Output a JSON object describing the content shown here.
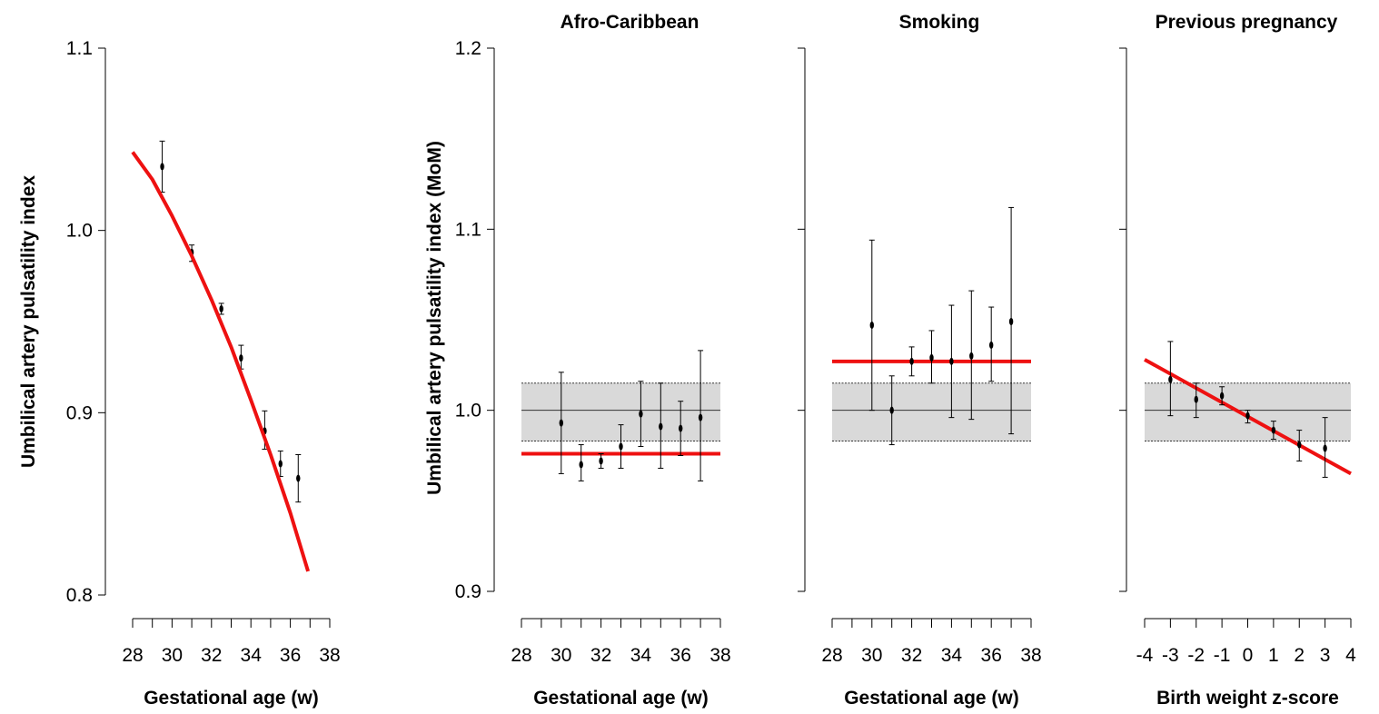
{
  "figure": {
    "ylabel_left": "Umbilical artery pulsatility index",
    "ylabel_mom": "Umbilical artery pulsatility index (MoM)"
  },
  "chart_data": [
    {
      "type": "line",
      "title": "",
      "xlabel": "Gestational age (w)",
      "ylabel": "Umbilical artery pulsatility index",
      "xlim": [
        28,
        38
      ],
      "xticks": [
        28,
        29,
        30,
        31,
        32,
        33,
        34,
        35,
        36,
        37,
        38
      ],
      "xtick_labels": [
        "28",
        "30",
        "32",
        "34",
        "36",
        "38"
      ],
      "ylim": [
        0.8,
        1.1
      ],
      "yticks": [
        "0.8",
        "0.9",
        "1.0",
        "1.1"
      ],
      "grid": false,
      "series": [
        {
          "kind": "points_with_error_bars",
          "points": [
            {
              "x": 29.5,
              "y": 1.035,
              "lo": 1.021,
              "hi": 1.049
            },
            {
              "x": 31.0,
              "y": 0.988,
              "lo": 0.983,
              "hi": 0.992
            },
            {
              "x": 32.5,
              "y": 0.957,
              "lo": 0.954,
              "hi": 0.96
            },
            {
              "x": 33.5,
              "y": 0.93,
              "lo": 0.924,
              "hi": 0.937
            },
            {
              "x": 34.7,
              "y": 0.89,
              "lo": 0.88,
              "hi": 0.901
            },
            {
              "x": 35.5,
              "y": 0.872,
              "lo": 0.865,
              "hi": 0.879
            },
            {
              "x": 36.4,
              "y": 0.864,
              "lo": 0.851,
              "hi": 0.877
            }
          ]
        },
        {
          "kind": "fit_line",
          "color": "#ee1111",
          "x": [
            28.0,
            29.0,
            30.0,
            31.0,
            32.0,
            33.0,
            34.0,
            35.0,
            36.0,
            36.9
          ],
          "y": [
            1.043,
            1.028,
            1.008,
            0.986,
            0.962,
            0.936,
            0.907,
            0.877,
            0.845,
            0.813
          ]
        }
      ]
    },
    {
      "type": "scatter",
      "title": "Afro-Caribbean",
      "xlabel": "Gestational age (w)",
      "ylabel": "Umbilical artery pulsatility index (MoM)",
      "xlim": [
        28,
        38
      ],
      "xticks": [
        28,
        29,
        30,
        31,
        32,
        33,
        34,
        35,
        36,
        37,
        38
      ],
      "xtick_labels": [
        "28",
        "30",
        "32",
        "34",
        "36",
        "38"
      ],
      "ylim": [
        0.9,
        1.2
      ],
      "yticks": [
        "0.9",
        "1.0",
        "1.1",
        "1.2"
      ],
      "grid": false,
      "reference": {
        "y": 1.0,
        "band": [
          0.983,
          1.015
        ],
        "band_color": "#d9d9d9"
      },
      "effect_line": {
        "y": 0.976,
        "color": "#ee1111"
      },
      "points": [
        {
          "x": 30,
          "y": 0.993,
          "lo": 0.965,
          "hi": 1.021
        },
        {
          "x": 31,
          "y": 0.97,
          "lo": 0.961,
          "hi": 0.981
        },
        {
          "x": 32,
          "y": 0.972,
          "lo": 0.968,
          "hi": 0.976
        },
        {
          "x": 33,
          "y": 0.98,
          "lo": 0.968,
          "hi": 0.992
        },
        {
          "x": 34,
          "y": 0.998,
          "lo": 0.98,
          "hi": 1.016
        },
        {
          "x": 35,
          "y": 0.991,
          "lo": 0.968,
          "hi": 1.015
        },
        {
          "x": 36,
          "y": 0.99,
          "lo": 0.975,
          "hi": 1.005
        },
        {
          "x": 37,
          "y": 0.996,
          "lo": 0.961,
          "hi": 1.033
        }
      ]
    },
    {
      "type": "scatter",
      "title": "Smoking",
      "xlabel": "Gestational age (w)",
      "ylabel": "",
      "xlim": [
        28,
        38
      ],
      "xticks": [
        28,
        29,
        30,
        31,
        32,
        33,
        34,
        35,
        36,
        37,
        38
      ],
      "xtick_labels": [
        "28",
        "30",
        "32",
        "34",
        "36",
        "38"
      ],
      "ylim": [
        0.9,
        1.2
      ],
      "yticks": [
        "",
        "",
        "",
        ""
      ],
      "grid": false,
      "reference": {
        "y": 1.0,
        "band": [
          0.983,
          1.015
        ],
        "band_color": "#d9d9d9"
      },
      "effect_line": {
        "y": 1.027,
        "color": "#ee1111"
      },
      "points": [
        {
          "x": 30,
          "y": 1.047,
          "lo": 1.0,
          "hi": 1.094
        },
        {
          "x": 31,
          "y": 1.0,
          "lo": 0.981,
          "hi": 1.019
        },
        {
          "x": 32,
          "y": 1.027,
          "lo": 1.019,
          "hi": 1.035
        },
        {
          "x": 33,
          "y": 1.029,
          "lo": 1.015,
          "hi": 1.044
        },
        {
          "x": 34,
          "y": 1.027,
          "lo": 0.996,
          "hi": 1.058
        },
        {
          "x": 35,
          "y": 1.03,
          "lo": 0.995,
          "hi": 1.066
        },
        {
          "x": 36,
          "y": 1.036,
          "lo": 1.016,
          "hi": 1.057
        },
        {
          "x": 37,
          "y": 1.049,
          "lo": 0.987,
          "hi": 1.112
        }
      ]
    },
    {
      "type": "scatter",
      "title": "Previous pregnancy",
      "xlabel": "Birth weight z-score",
      "ylabel": "",
      "xlim": [
        -4,
        4
      ],
      "xticks": [
        -4,
        -3,
        -2,
        -1,
        0,
        1,
        2,
        3,
        4
      ],
      "xtick_labels": [
        "-4",
        "-3",
        "-2",
        "-1",
        "0",
        "1",
        "2",
        "3",
        "4"
      ],
      "ylim": [
        0.9,
        1.2
      ],
      "yticks": [
        "",
        "",
        "",
        ""
      ],
      "grid": false,
      "reference": {
        "y": 1.0,
        "band": [
          0.983,
          1.015
        ],
        "band_color": "#d9d9d9"
      },
      "effect_line": {
        "x": [
          -4,
          4
        ],
        "y": [
          1.028,
          0.965
        ],
        "color": "#ee1111"
      },
      "points": [
        {
          "x": -3,
          "y": 1.017,
          "lo": 0.997,
          "hi": 1.038
        },
        {
          "x": -2,
          "y": 1.006,
          "lo": 0.996,
          "hi": 1.015
        },
        {
          "x": -1,
          "y": 1.008,
          "lo": 1.003,
          "hi": 1.013
        },
        {
          "x": 0,
          "y": 0.997,
          "lo": 0.993,
          "hi": 1.0
        },
        {
          "x": 1,
          "y": 0.989,
          "lo": 0.984,
          "hi": 0.994
        },
        {
          "x": 2,
          "y": 0.981,
          "lo": 0.972,
          "hi": 0.989
        },
        {
          "x": 3,
          "y": 0.979,
          "lo": 0.963,
          "hi": 0.996
        }
      ]
    }
  ]
}
